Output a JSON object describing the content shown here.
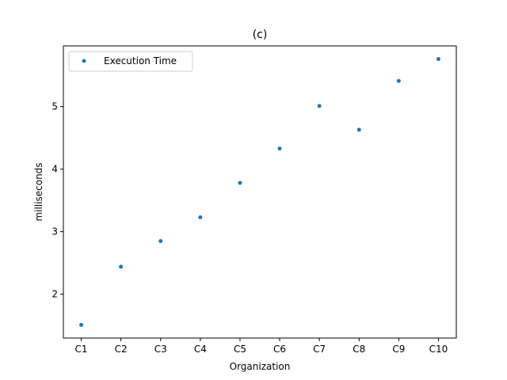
{
  "chart_data": {
    "type": "scatter",
    "title": "(c)",
    "xlabel": "Organization",
    "ylabel": "milliseconds",
    "categories": [
      "C1",
      "C2",
      "C3",
      "C4",
      "C5",
      "C6",
      "C7",
      "C8",
      "C9",
      "C10"
    ],
    "series": [
      {
        "name": "Execution Time",
        "color": "#1f77b4",
        "values": [
          1.51,
          2.44,
          2.85,
          3.23,
          3.78,
          4.33,
          5.01,
          4.63,
          5.41,
          5.76
        ]
      }
    ],
    "ylim": [
      1.3,
      5.97
    ],
    "yticks": [
      2,
      3,
      4,
      5
    ],
    "grid": false,
    "legend": "upper-left"
  }
}
